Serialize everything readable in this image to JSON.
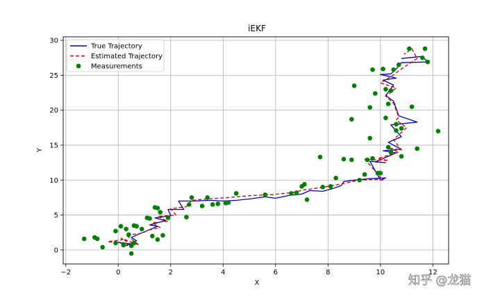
{
  "chart_data": {
    "type": "line",
    "title": "iEKF",
    "xlabel": "X",
    "ylabel": "Y",
    "xlim": [
      -2.1,
      12.6
    ],
    "ylim": [
      -2,
      30.5
    ],
    "xticks": [
      -2,
      0,
      2,
      4,
      6,
      8,
      10,
      12
    ],
    "xtick_labels": [
      "−2",
      "0",
      "2",
      "4",
      "6",
      "8",
      "10",
      "12"
    ],
    "yticks": [
      0,
      5,
      10,
      15,
      20,
      25,
      30
    ],
    "ytick_labels": [
      "0",
      "5",
      "10",
      "15",
      "20",
      "25",
      "30"
    ],
    "grid": true,
    "legend_position": "top-left",
    "series": [
      {
        "name": "True Trajectory",
        "kind": "line",
        "style": "solid",
        "color": "#0000bf",
        "x": [
          0.3,
          0.0,
          0.4,
          0.3,
          0.7,
          0.5,
          0.8,
          1.0,
          1.5,
          1.2,
          1.8,
          1.4,
          2.0,
          1.9,
          2.5,
          2.3,
          2.9,
          3.5,
          4.0,
          4.5,
          5.0,
          5.6,
          6.0,
          6.5,
          7.0,
          7.3,
          7.8,
          8.2,
          8.5,
          8.6,
          9.0,
          9.6,
          10.2,
          10.0,
          9.6,
          10.2,
          9.8,
          10.6,
          10.1,
          10.8,
          10.3,
          10.8,
          10.4,
          11.4,
          10.7,
          10.5,
          10.2,
          10.5,
          10.1,
          10.6,
          10.0,
          10.4,
          10.6,
          10.8,
          11.8,
          11.6,
          10.8
        ],
        "y": [
          0.9,
          1.1,
          0.9,
          0.6,
          1.3,
          1.8,
          2.3,
          2.6,
          3.4,
          3.6,
          4.2,
          4.6,
          4.9,
          5.8,
          5.8,
          7.0,
          7.0,
          7.1,
          7.0,
          7.1,
          7.3,
          7.6,
          7.4,
          7.8,
          8.0,
          8.5,
          8.4,
          8.8,
          9.2,
          9.8,
          10.0,
          10.2,
          10.3,
          10.0,
          12.7,
          12.5,
          12.6,
          13.9,
          14.2,
          14.4,
          15.4,
          16.2,
          17.9,
          18.3,
          19.2,
          21.3,
          22.1,
          23.6,
          24.3,
          24.6,
          25.1,
          25.2,
          25.9,
          26.8,
          26.9,
          27.7,
          27.4
        ]
      },
      {
        "name": "Estimated Trajectory",
        "kind": "line",
        "style": "dashed",
        "color": "#cc0000",
        "x": [
          0.2,
          -0.4,
          0.5,
          0.1,
          0.8,
          0.3,
          0.9,
          1.2,
          1.6,
          1.3,
          1.9,
          1.5,
          2.2,
          2.0,
          2.6,
          2.8,
          3.4,
          4.2,
          5.1,
          5.8,
          6.6,
          7.1,
          7.7,
          8.3,
          8.7,
          9.2,
          9.9,
          10.1,
          9.4,
          10.3,
          9.9,
          10.7,
          10.3,
          10.8,
          10.5,
          11.0,
          10.6,
          10.7,
          10.5,
          10.2,
          10.6,
          10.0,
          10.4,
          10.8,
          11.4,
          11.2,
          10.9
        ],
        "y": [
          1.5,
          1.2,
          0.8,
          1.7,
          0.7,
          2.1,
          2.4,
          2.9,
          3.2,
          3.9,
          4.1,
          4.8,
          5.0,
          5.9,
          6.2,
          7.1,
          7.3,
          7.5,
          7.8,
          7.9,
          8.2,
          8.6,
          8.9,
          9.3,
          9.6,
          10.0,
          10.1,
          10.0,
          13.0,
          12.8,
          13.1,
          14.0,
          14.6,
          14.3,
          15.8,
          17.5,
          18.6,
          19.0,
          21.0,
          22.0,
          23.2,
          23.9,
          24.8,
          25.9,
          27.4,
          28.8,
          28.0
        ]
      },
      {
        "name": "Measurements",
        "kind": "scatter",
        "color": "#007f00",
        "x": [
          -1.3,
          -0.9,
          -0.8,
          -0.6,
          -0.1,
          0.1,
          0.2,
          0.3,
          0.4,
          0.5,
          0.6,
          0.7,
          0.9,
          1.1,
          1.2,
          1.3,
          1.4,
          1.5,
          1.6,
          1.5,
          1.7,
          0.5,
          0.2,
          -0.1,
          0.6,
          1.9,
          2.6,
          2.7,
          2.8,
          3.2,
          3.4,
          3.6,
          3.8,
          4.1,
          4.2,
          4.5,
          5.6,
          6.6,
          6.8,
          7.0,
          7.1,
          7.2,
          7.7,
          7.8,
          8.1,
          8.3,
          8.6,
          8.9,
          9.2,
          9.4,
          9.5,
          9.6,
          9.7,
          9.9,
          10.0,
          10.2,
          10.3,
          10.4,
          10.6,
          10.8,
          11.1,
          11.4,
          12.2,
          8.9,
          9.6,
          9.8,
          10.2,
          10.5,
          10.7,
          10.8,
          11.2,
          11.7,
          11.8,
          11.6,
          9.0,
          9.7,
          10.1,
          10.4,
          10.3,
          10.6
        ],
        "y": [
          1.6,
          1.8,
          1.6,
          0.4,
          2.7,
          3.4,
          0.8,
          3.0,
          2.2,
          -0.5,
          1.0,
          3.4,
          3.0,
          4.6,
          4.5,
          2.0,
          6.1,
          6.0,
          5.4,
          1.5,
          2.1,
          0.6,
          0.7,
          1.0,
          3.5,
          4.6,
          4.7,
          6.5,
          7.5,
          6.3,
          7.5,
          6.5,
          6.6,
          6.7,
          6.8,
          8.1,
          7.9,
          8.1,
          8.2,
          9.1,
          9.4,
          7.2,
          13.3,
          9.0,
          9.1,
          10.3,
          13.0,
          18.7,
          10.0,
          10.8,
          12.9,
          16.0,
          13.1,
          11.0,
          11.0,
          18.9,
          20.9,
          14.0,
          18.0,
          13.4,
          28.8,
          14.5,
          17.0,
          12.9,
          20.4,
          22.4,
          23.0,
          25.8,
          26.5,
          17.4,
          20.5,
          28.8,
          26.9,
          27.5,
          23.5,
          25.8,
          25.9,
          22.8,
          14.7,
          17.1
        ]
      }
    ],
    "watermark": "知乎 @龙猫"
  }
}
